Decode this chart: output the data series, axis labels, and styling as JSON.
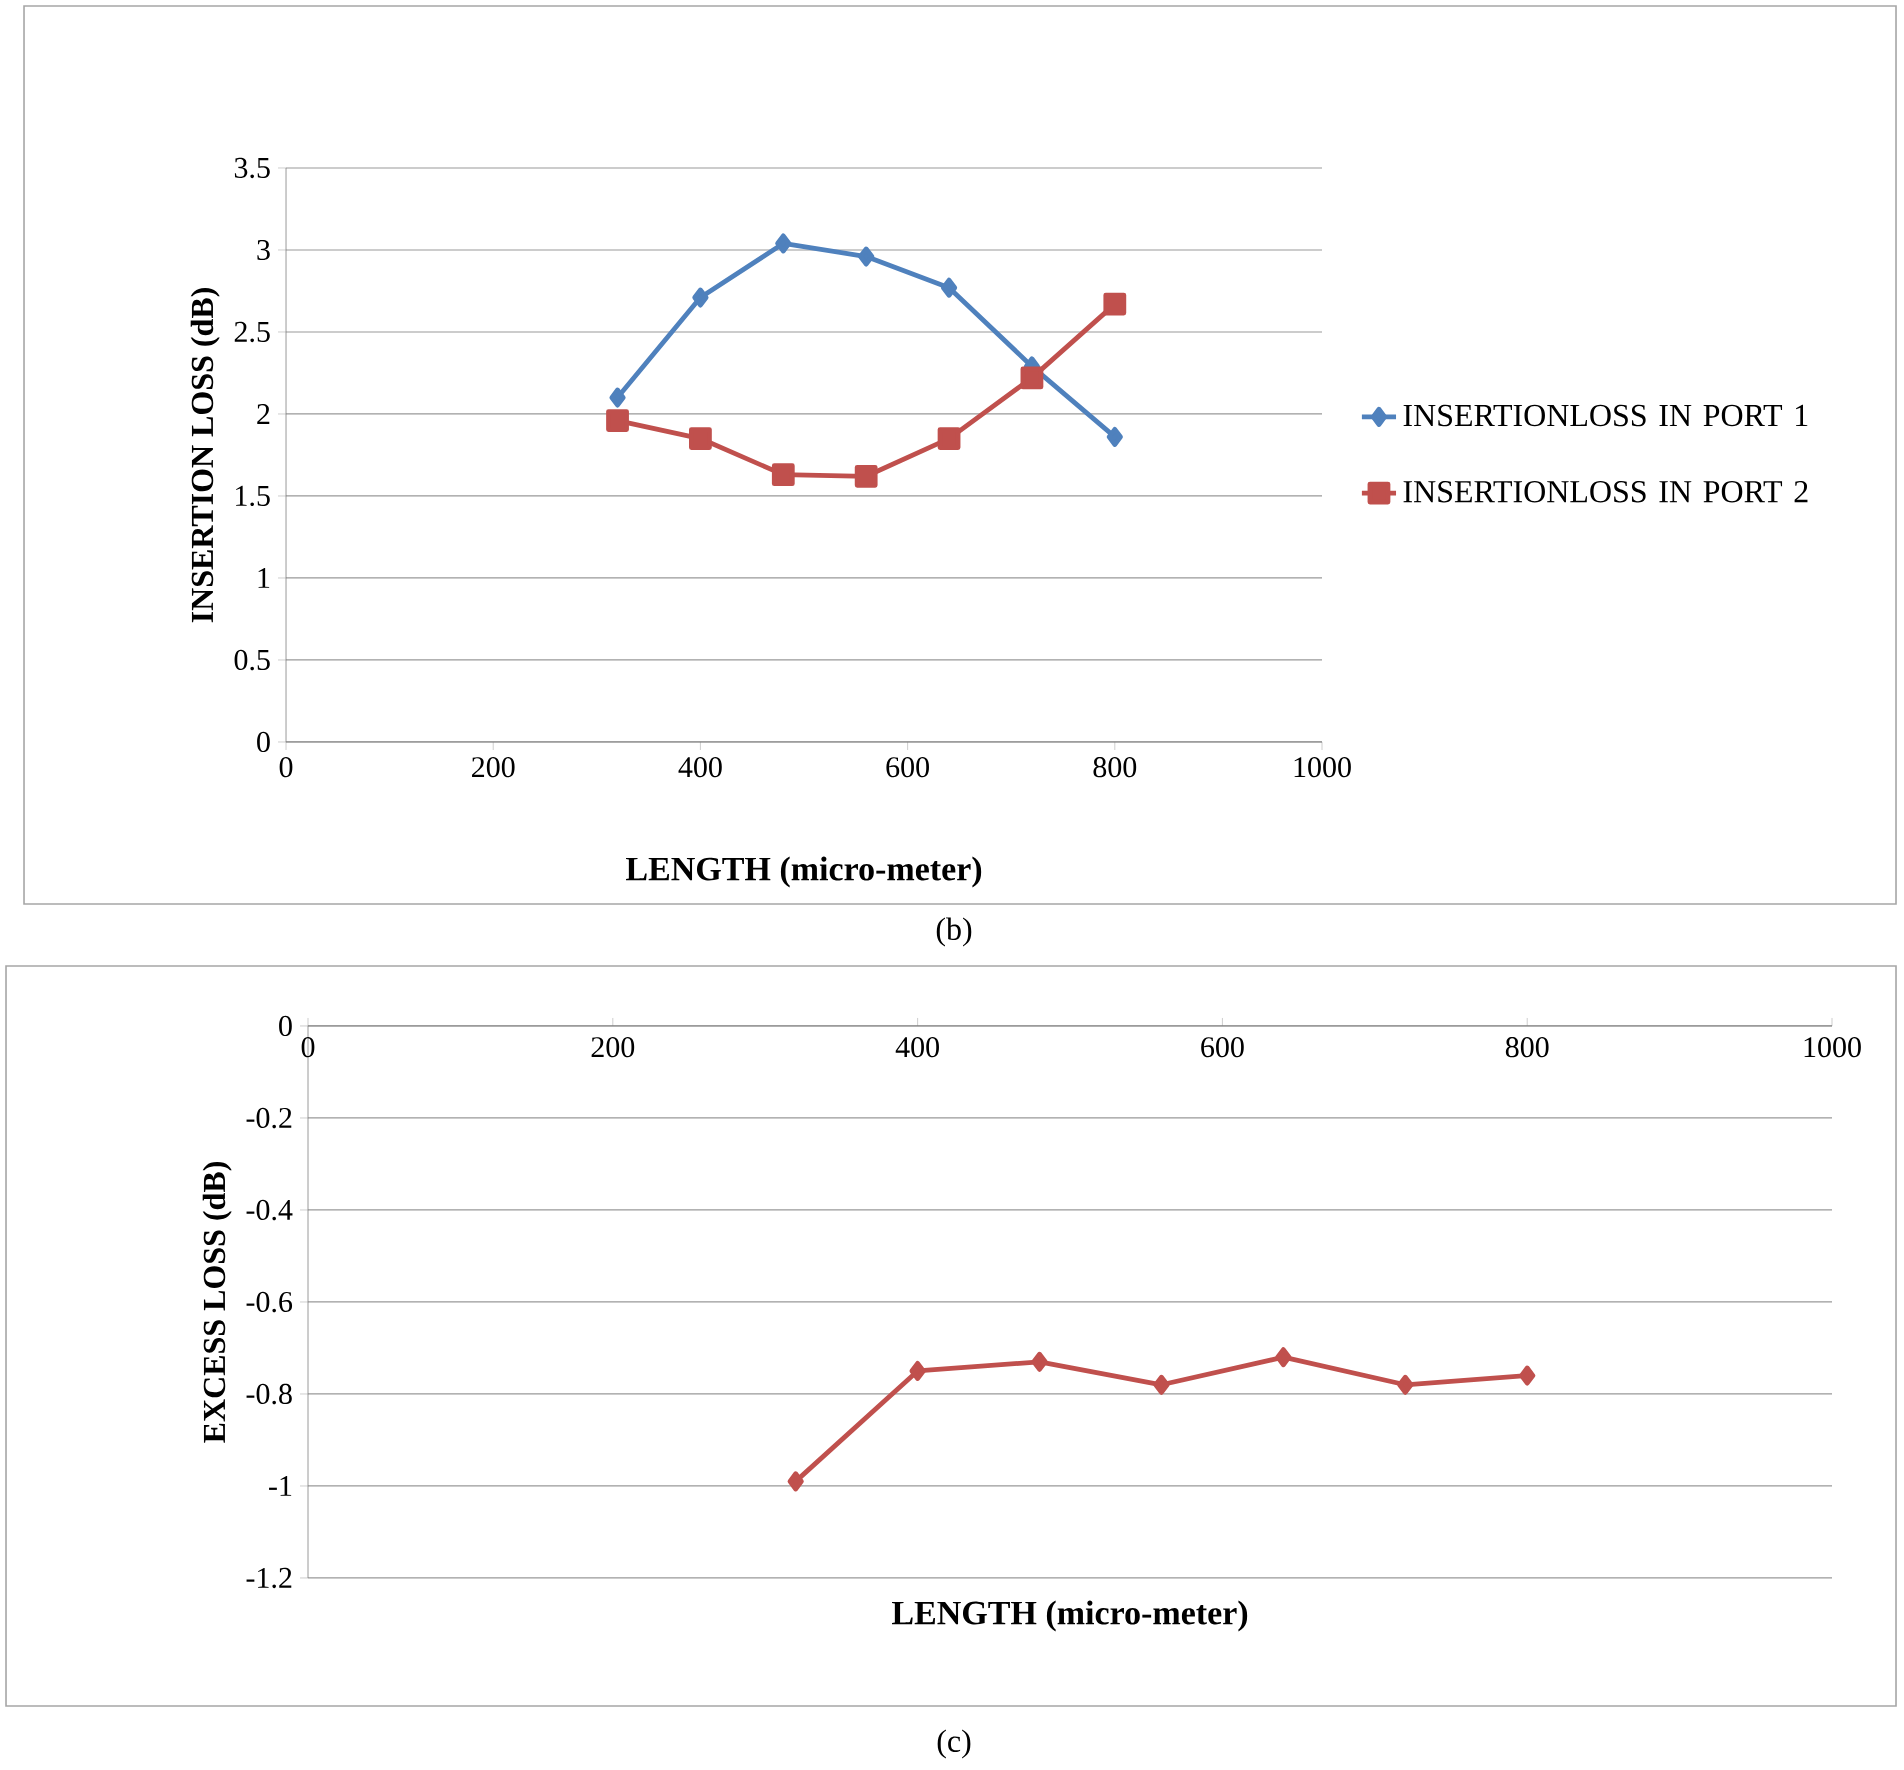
{
  "chart_data": [
    {
      "type": "line",
      "xlabel": "LENGTH (micro-meter)",
      "ylabel": "INSERTION LOSS (dB)",
      "x": [
        320,
        400,
        480,
        560,
        640,
        720,
        800
      ],
      "series": [
        {
          "name": "INSERTIONLOSS IN PORT 1",
          "color": "#4f81bd",
          "marker": "diamond",
          "values": [
            2.1,
            2.71,
            3.04,
            2.96,
            2.77,
            2.29,
            1.86
          ]
        },
        {
          "name": "INSERTIONLOSS IN PORT 2",
          "color": "#c0504d",
          "marker": "square",
          "values": [
            1.96,
            1.85,
            1.63,
            1.62,
            1.85,
            2.22,
            2.67
          ]
        }
      ],
      "xlim": [
        0,
        1000
      ],
      "xticks": [
        0,
        200,
        400,
        600,
        800,
        1000
      ],
      "ylim": [
        0,
        3.5
      ],
      "yticks": [
        0,
        0.5,
        1,
        1.5,
        2,
        2.5,
        3,
        3.5
      ],
      "grid": "y",
      "legend": "right",
      "line_style": "solid",
      "annotations": [
        "(b)"
      ]
    },
    {
      "type": "line",
      "xlabel": "LENGTH (micro-meter)",
      "ylabel": "EXCESS LOSS (dB)",
      "x": [
        320,
        400,
        480,
        560,
        640,
        720,
        800
      ],
      "series": [
        {
          "color": "#c0504d",
          "marker": "diamond",
          "values": [
            -0.99,
            -0.75,
            -0.73,
            -0.78,
            -0.72,
            -0.78,
            -0.76
          ]
        }
      ],
      "xlim": [
        0,
        1000
      ],
      "xticks": [
        0,
        200,
        400,
        600,
        800,
        1000
      ],
      "ylim": [
        -1.2,
        0
      ],
      "yticks": [
        0,
        -0.2,
        -0.4,
        -0.6,
        -0.8,
        -1,
        -1.2
      ],
      "grid": "y",
      "line_style": "solid",
      "annotations": [
        "(c)"
      ]
    }
  ]
}
